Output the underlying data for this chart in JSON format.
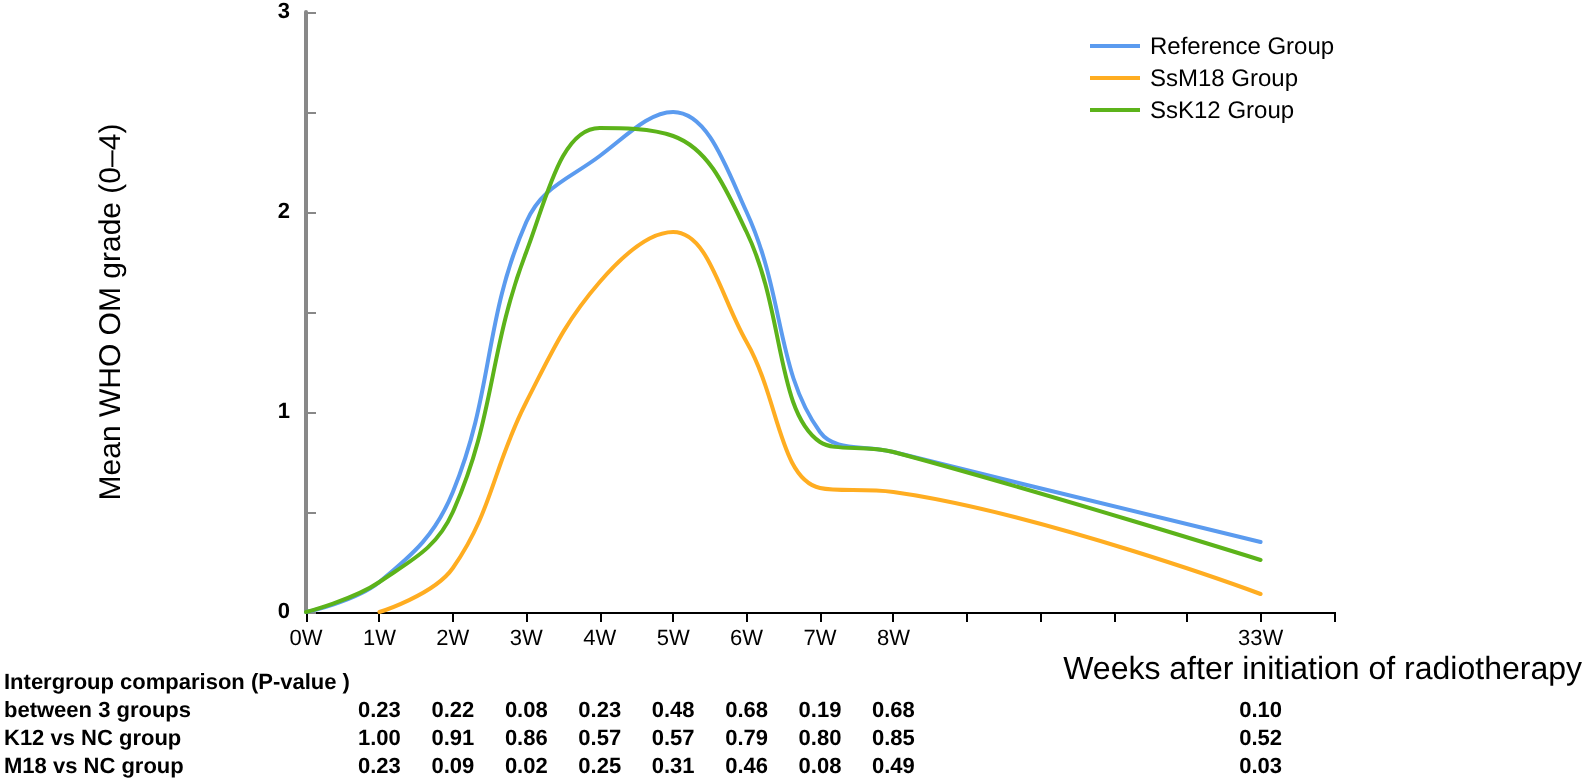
{
  "chart_data": {
    "type": "line",
    "ylabel": "Mean WHO OM grade (0–4)",
    "xlabel": "Weeks after initiation of radiotherapy",
    "categories": [
      "0W",
      "1W",
      "2W",
      "3W",
      "4W",
      "5W",
      "6W",
      "7W",
      "8W",
      null,
      null,
      null,
      null,
      "33W",
      null
    ],
    "series": [
      {
        "name": "Reference Group",
        "color": "#5b9bef",
        "values": [
          0,
          0.15,
          0.6,
          1.95,
          2.28,
          2.5,
          2.0,
          0.9,
          0.8,
          null,
          null,
          null,
          null,
          0.35,
          null
        ]
      },
      {
        "name": "SsM18 Group",
        "color": "#ffad21",
        "values": [
          null,
          0,
          0.22,
          1.05,
          1.65,
          1.9,
          1.35,
          0.62,
          0.6,
          null,
          null,
          null,
          null,
          0.09,
          null
        ]
      },
      {
        "name": "SsK12 Group",
        "color": "#5cb31a",
        "values": [
          0,
          0.15,
          0.5,
          1.8,
          2.42,
          2.38,
          1.9,
          0.85,
          0.8,
          null,
          null,
          null,
          null,
          0.26,
          null
        ]
      }
    ],
    "ylim": [
      0,
      3
    ],
    "yticks": [
      0,
      {
        "value": 0.5,
        "label": null
      },
      1,
      {
        "value": 1.5,
        "label": null
      },
      2,
      {
        "value": 2.5,
        "label": null
      },
      3
    ],
    "grid": false,
    "legend": "top right",
    "marker": "none",
    "line_style": "solid",
    "annotations": [
      "Intergroup comparison (P-value )",
      "between 3 groups",
      "0.23",
      "0.22",
      "0.08",
      "0.23",
      "0.48",
      "0.68",
      "0.19",
      "0.68",
      "0.10",
      "K12 vs NC group",
      "1.00",
      "0.91",
      "0.86",
      "0.57",
      "0.57",
      "0.79",
      "0.80",
      "0.85",
      "0.52",
      "M18 vs NC group",
      "0.23",
      "0.09",
      "0.02",
      "0.25",
      "0.31",
      "0.46",
      "0.08",
      "0.49",
      "0.03"
    ]
  }
}
